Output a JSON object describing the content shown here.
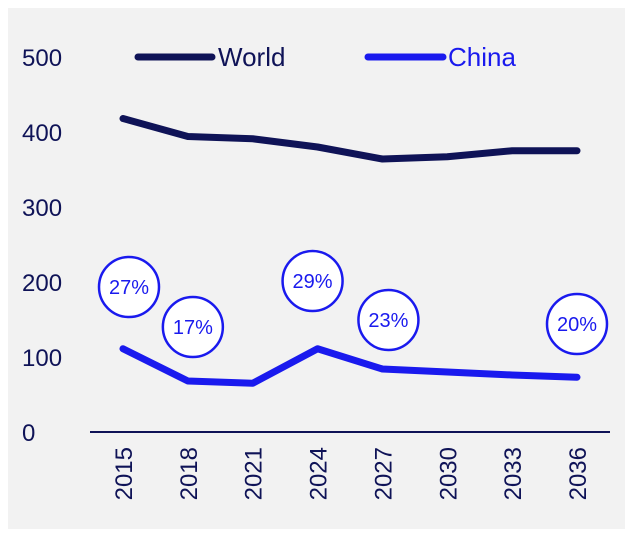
{
  "chart_data": {
    "type": "line",
    "x": [
      "2015",
      "2018",
      "2021",
      "2024",
      "2027",
      "2030",
      "2033",
      "2036"
    ],
    "series": [
      {
        "name": "World",
        "color": "#0f1357",
        "values": [
          418,
          394,
          391,
          380,
          364,
          367,
          375,
          375
        ]
      },
      {
        "name": "China",
        "color": "#1a1aee",
        "values": [
          111,
          68,
          65,
          111,
          84,
          80,
          76,
          73
        ]
      }
    ],
    "yticks": [
      "0",
      "100",
      "200",
      "300",
      "400",
      "500"
    ],
    "ylim": [
      0,
      500
    ],
    "grid": false,
    "legend": "top",
    "annotations": [
      {
        "label": "27%",
        "x": "2015"
      },
      {
        "label": "17%",
        "x": "2018"
      },
      {
        "label": "29%",
        "x": "2024"
      },
      {
        "label": "23%",
        "x": "2027"
      },
      {
        "label": "20%",
        "x": "2036"
      }
    ],
    "annotation_color": "#1a1aee",
    "axis_color": "#0f1357"
  }
}
